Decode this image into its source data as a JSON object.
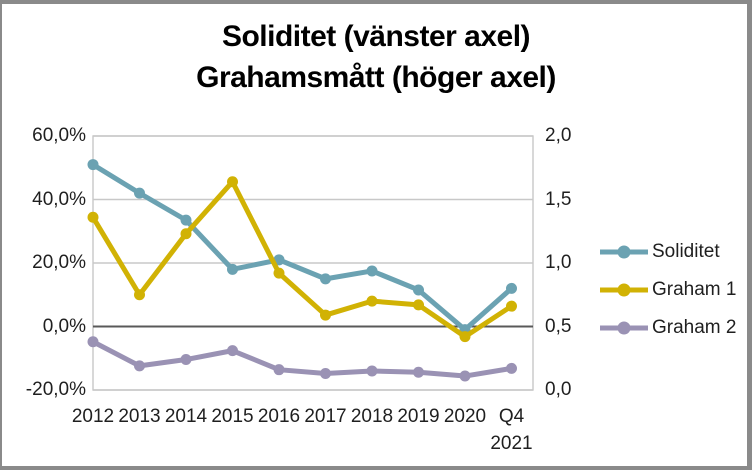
{
  "frame": {
    "border_color": "#8A8A8A",
    "background": "#FFFFFF"
  },
  "title": {
    "line1": "Soliditet (vänster axel)",
    "line2": "Grahamsmått (höger axel)"
  },
  "chart_data": {
    "type": "line",
    "categories": [
      "2012",
      "2013",
      "2014",
      "2015",
      "2016",
      "2017",
      "2018",
      "2019",
      "2020",
      "Q4 2021"
    ],
    "series": [
      {
        "name": "Soliditet",
        "axis": "left",
        "color": "#6BA2B2",
        "values": [
          51,
          42,
          33.5,
          18,
          21,
          15,
          17.5,
          11.5,
          -1,
          12
        ]
      },
      {
        "name": "Graham 1",
        "axis": "right",
        "color": "#D1B204",
        "values": [
          1.36,
          0.75,
          1.23,
          1.64,
          0.92,
          0.59,
          0.7,
          0.67,
          0.42,
          0.66
        ]
      },
      {
        "name": "Graham 2",
        "axis": "right",
        "color": "#9A92B4",
        "values": [
          0.38,
          0.19,
          0.24,
          0.31,
          0.16,
          0.13,
          0.15,
          0.14,
          0.11,
          0.17
        ]
      }
    ],
    "left_axis": {
      "min": -20,
      "max": 60,
      "ticks": [
        {
          "label": "60,0%",
          "value": 60
        },
        {
          "label": "40,0%",
          "value": 40
        },
        {
          "label": "20,0%",
          "value": 20
        },
        {
          "label": "0,0%",
          "value": 0
        },
        {
          "label": "-20,0%",
          "value": -20
        }
      ]
    },
    "right_axis": {
      "min": 0,
      "max": 2,
      "ticks": [
        {
          "label": "2,0",
          "value": 2.0
        },
        {
          "label": "1,5",
          "value": 1.5
        },
        {
          "label": "1,0",
          "value": 1.0
        },
        {
          "label": "0,5",
          "value": 0.5
        },
        {
          "label": "0,0",
          "value": 0.0
        }
      ]
    },
    "legend": {
      "position": "right",
      "entries": [
        "Soliditet",
        "Graham 1",
        "Graham 2"
      ]
    },
    "grid": true,
    "gridline_color": "#C8C8C8",
    "zero_line_color": "#595959",
    "text_color": "#1F1F1F"
  }
}
